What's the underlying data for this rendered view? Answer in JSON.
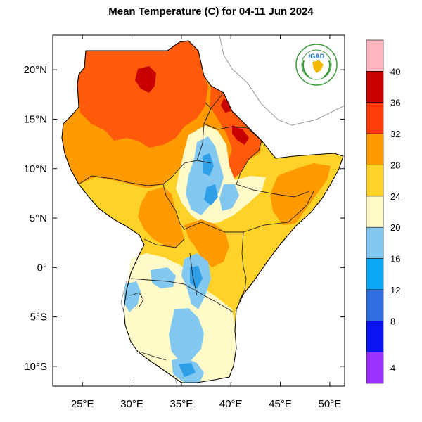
{
  "title": "Mean Temperature (C) for 04-11 Jun 2024",
  "logo_text": "IGAD",
  "map": {
    "lon_range": [
      22,
      51.5
    ],
    "lat_range": [
      -12,
      23.5
    ],
    "lon_ticks": [
      {
        "value": 25,
        "label": "25°E"
      },
      {
        "value": 30,
        "label": "30°E"
      },
      {
        "value": 35,
        "label": "35°E"
      },
      {
        "value": 40,
        "label": "40°E"
      },
      {
        "value": 45,
        "label": "45°E"
      },
      {
        "value": 50,
        "label": "50°E"
      }
    ],
    "lat_ticks": [
      {
        "value": 20,
        "label": "20°N"
      },
      {
        "value": 15,
        "label": "15°N"
      },
      {
        "value": 10,
        "label": "10°N"
      },
      {
        "value": 5,
        "label": "5°N"
      },
      {
        "value": 0,
        "label": "0°"
      },
      {
        "value": -5,
        "label": "5°S"
      },
      {
        "value": -10,
        "label": "10°S"
      }
    ]
  },
  "colorbar": {
    "bins": [
      {
        "color": "#9b30ff",
        "label": "4"
      },
      {
        "color": "#0a14f0",
        "label": "8"
      },
      {
        "color": "#2f6fe0",
        "label": "12"
      },
      {
        "color": "#0aa8f5",
        "label": "16"
      },
      {
        "color": "#82c8f0",
        "label": "20"
      },
      {
        "color": "#fffac8",
        "label": "24"
      },
      {
        "color": "#ffd22a",
        "label": "28"
      },
      {
        "color": "#ff9a00",
        "label": "32"
      },
      {
        "color": "#ff3c0a",
        "label": "36"
      },
      {
        "color": "#c80000",
        "label": "40"
      },
      {
        "color": "#ffb6c1",
        "label": ""
      }
    ]
  },
  "colors": {
    "hot_32_36": "#ff5a0a",
    "warm_28_32": "#ff9a00",
    "mild_24_28": "#ffd22a",
    "cool_20_24": "#fffac8",
    "cold_16_20": "#82c8f0",
    "colder_12_16": "#2f9fe8",
    "very_hot_36_40": "#c80000",
    "logo_green": "#3a9a3a",
    "logo_blue": "#1e6fc0"
  }
}
